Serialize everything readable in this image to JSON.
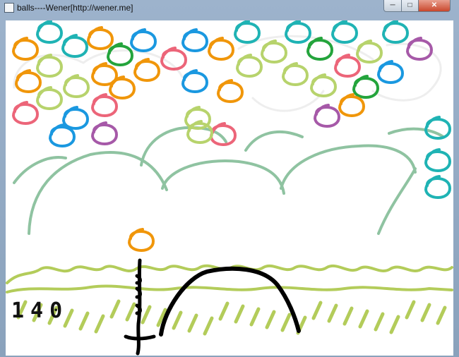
{
  "window": {
    "title": "balls----Wener[http://wener.me]",
    "controls": {
      "minimize": "─",
      "maximize": "□",
      "close": "✕"
    },
    "icon": "app-window-icon"
  },
  "game": {
    "score": "140",
    "colors": {
      "orange": "#f0960a",
      "teal": "#1fb3b4",
      "blue": "#1a98e0",
      "green": "#24a43c",
      "lime": "#b7d36c",
      "pink": "#ec6579",
      "purple": "#a659a8",
      "hill": "#8fc3a1",
      "grass": "#b3cc5a",
      "ink": "#000000",
      "cloud": "#eeeeee"
    },
    "balls": [
      {
        "color": "teal"
      },
      {
        "color": "orange"
      },
      {
        "color": "teal"
      },
      {
        "color": "orange"
      },
      {
        "color": "green"
      },
      {
        "color": "blue"
      },
      {
        "color": "pink"
      },
      {
        "color": "blue"
      },
      {
        "color": "orange"
      },
      {
        "color": "teal"
      },
      {
        "color": "lime"
      },
      {
        "color": "teal"
      },
      {
        "color": "green"
      },
      {
        "color": "teal"
      },
      {
        "color": "lime"
      },
      {
        "color": "teal"
      },
      {
        "color": "purple"
      },
      {
        "color": "orange"
      },
      {
        "color": "lime"
      },
      {
        "color": "lime"
      },
      {
        "color": "orange"
      },
      {
        "color": "orange"
      },
      {
        "color": "orange"
      },
      {
        "color": "blue"
      },
      {
        "color": "lime"
      },
      {
        "color": "pink"
      },
      {
        "color": "blue"
      },
      {
        "color": "lime"
      },
      {
        "color": "green"
      },
      {
        "color": "lime"
      },
      {
        "color": "lime"
      },
      {
        "color": "pink"
      },
      {
        "color": "orange"
      },
      {
        "color": "blue"
      },
      {
        "color": "pink"
      },
      {
        "color": "blue"
      },
      {
        "color": "purple"
      },
      {
        "color": "lime"
      },
      {
        "color": "lime"
      },
      {
        "color": "pink"
      },
      {
        "color": "purple"
      },
      {
        "color": "orange"
      },
      {
        "color": "teal"
      },
      {
        "color": "teal"
      },
      {
        "color": "teal"
      },
      {
        "color": "orange"
      }
    ]
  }
}
